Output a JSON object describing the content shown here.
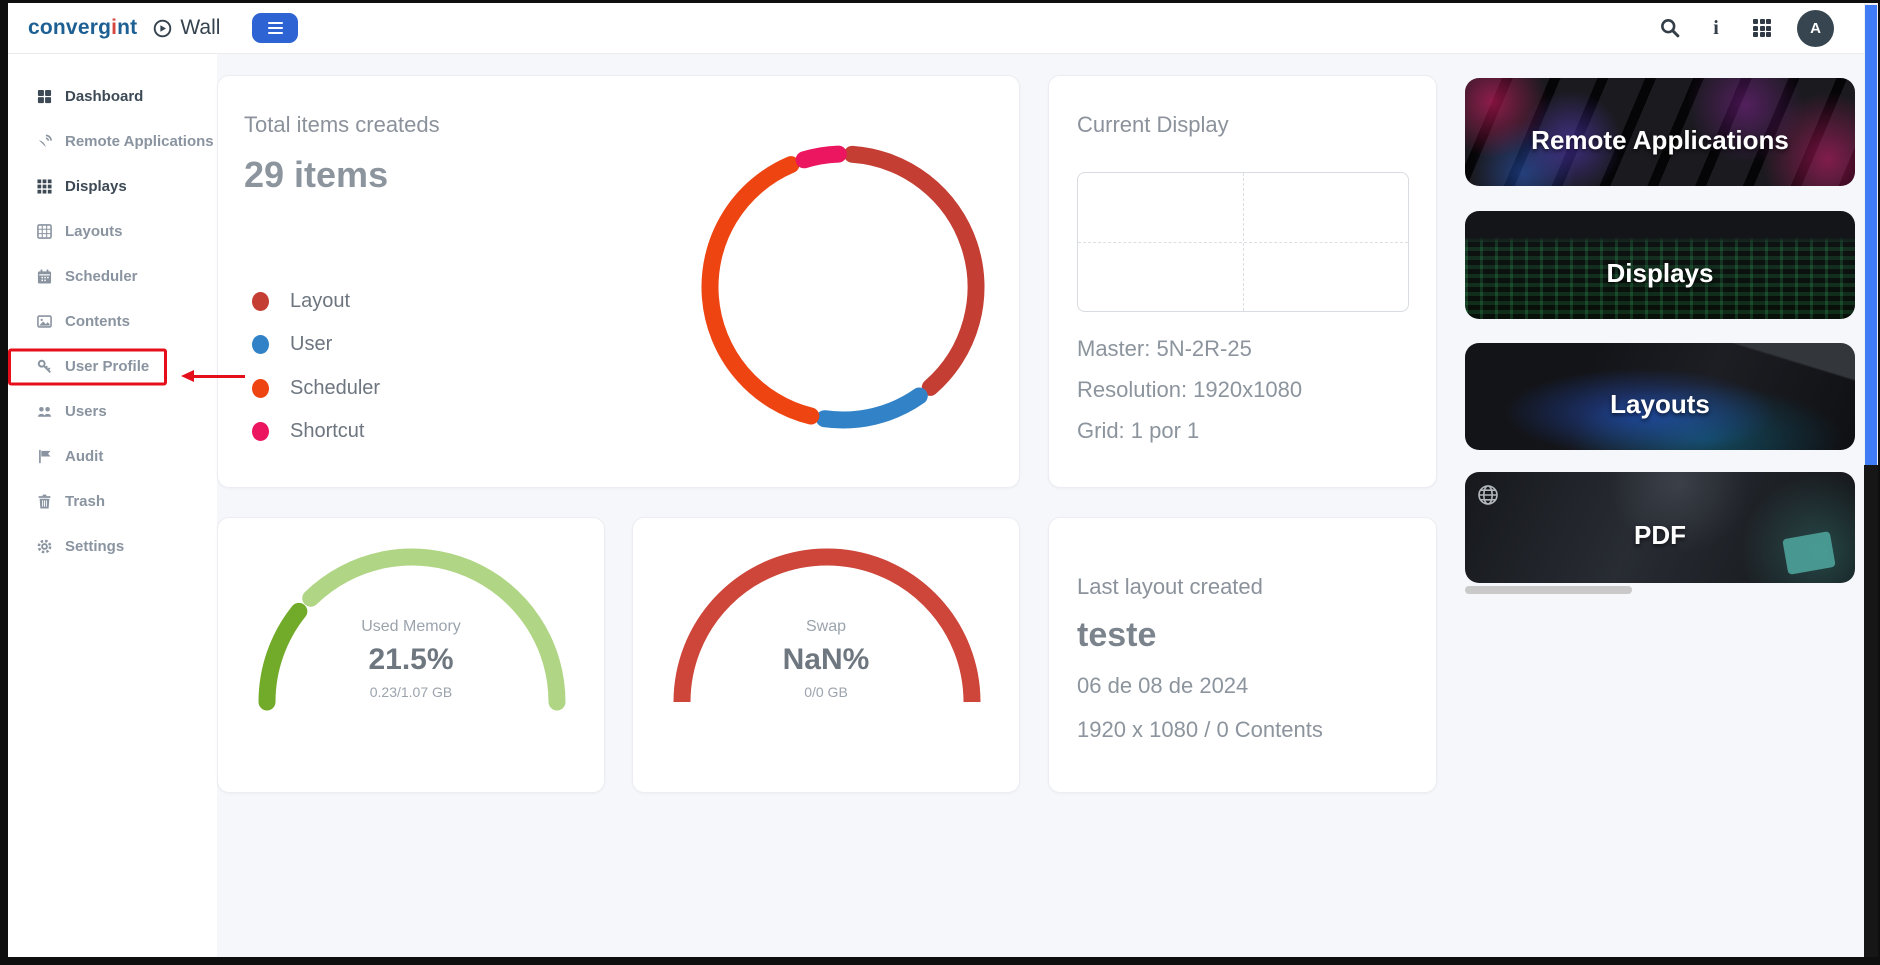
{
  "topbar": {
    "logo_prefix": "converg",
    "logo_i": "i",
    "logo_suffix": "nt",
    "product": "Wall",
    "avatar_initial": "A",
    "icons": [
      "search-icon",
      "info-icon",
      "apps-grid-icon",
      "avatar"
    ]
  },
  "sidebar": {
    "items": [
      {
        "label": "Dashboard",
        "icon": "dashboard-icon",
        "emphasis": "strong"
      },
      {
        "label": "Remote Applications",
        "icon": "remote-applications-icon"
      },
      {
        "label": "Displays",
        "icon": "displays-icon",
        "emphasis": "strong"
      },
      {
        "label": "Layouts",
        "icon": "layouts-icon"
      },
      {
        "label": "Scheduler",
        "icon": "scheduler-icon"
      },
      {
        "label": "Contents",
        "icon": "contents-icon"
      },
      {
        "label": "User Profile",
        "icon": "user-profile-icon",
        "annotated": true
      },
      {
        "label": "Users",
        "icon": "users-icon"
      },
      {
        "label": "Audit",
        "icon": "audit-icon"
      },
      {
        "label": "Trash",
        "icon": "trash-icon"
      },
      {
        "label": "Settings",
        "icon": "settings-icon"
      }
    ],
    "annotation": {
      "highlighted_item": "User Profile",
      "color": "#e40f1a",
      "style": "red box with left-pointing arrow"
    }
  },
  "cards": {
    "current_display": {
      "title": "Current Display",
      "master": "Master: 5N-2R-25",
      "resolution": "Resolution: 1920x1080",
      "grid": "Grid: 1 por 1"
    },
    "last_layout": {
      "title": "Last layout created",
      "name": "teste",
      "date": "06 de 08 de 2024",
      "meta": "1920 x 1080  /  0 Contents"
    }
  },
  "chart_data": [
    {
      "type": "donut",
      "title": "Total items createds",
      "total_label": "29 items",
      "total_items": 29,
      "legend_position": "left",
      "segments": [
        {
          "label": "Layout",
          "value": 12,
          "color": "#c43e33",
          "start_deg": 4,
          "end_deg": 139
        },
        {
          "label": "User",
          "value": 4,
          "color": "#3182c6",
          "start_deg": 145,
          "end_deg": 188
        },
        {
          "label": "Scheduler",
          "value": 12,
          "color": "#ed4411",
          "start_deg": 194,
          "end_deg": 337
        },
        {
          "label": "Shortcut",
          "value": 1,
          "color": "#ec155f",
          "start_deg": 343,
          "end_deg": 358
        }
      ]
    },
    {
      "type": "gauge",
      "label": "Used Memory",
      "value_label": "21.5%",
      "sub_label": "0.23/1.07 GB",
      "percent": 21.5,
      "fill_color": "#72aa29",
      "track_color": "#b0d584"
    },
    {
      "type": "gauge",
      "label": "Swap",
      "value_label": "NaN%",
      "sub_label": "0/0 GB",
      "percent": null,
      "fill_color": "#ce453a",
      "track_color": "#ce453a"
    }
  ],
  "quick_links": [
    {
      "label": "Remote Applications",
      "art": "keyboard"
    },
    {
      "label": "Displays",
      "art": "matrix"
    },
    {
      "label": "Layouts",
      "art": "editor"
    },
    {
      "label": "PDF",
      "art": "desk"
    }
  ],
  "colors": {
    "annotation_red": "#e40f1a",
    "menu_button_blue": "#2d63d3",
    "scrollbar_thumb_blue": "#3f7cf6",
    "logo_blue": "#1e6093",
    "logo_i_red": "#d8453e"
  }
}
